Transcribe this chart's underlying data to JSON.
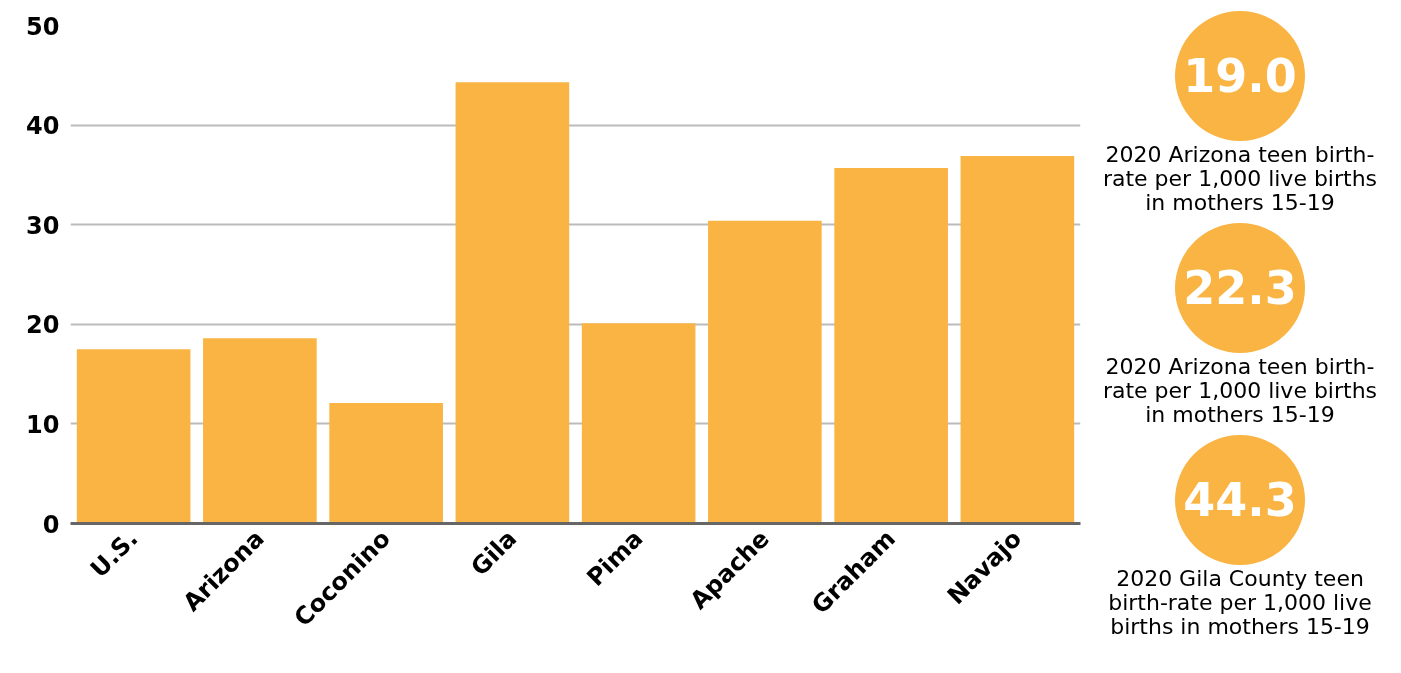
{
  "chart_data": {
    "type": "bar",
    "categories": [
      "U.S.",
      "Arizona",
      "Coconino",
      "Gila",
      "Pima",
      "Apache",
      "Graham",
      "Navajo"
    ],
    "values": [
      17.5,
      18.6,
      12.1,
      44.3,
      20.1,
      30.4,
      35.7,
      36.9
    ],
    "color": "#f9b444",
    "ylim": [
      0,
      50
    ],
    "yticks": [
      0,
      10,
      20,
      30,
      40,
      50
    ],
    "grid": "y",
    "annotations": [
      "19.0",
      "2020 Arizona teen birth-rate per 1,000 live births in mothers 15-19",
      "22.3",
      "2020 Arizona teen birth-rate per 1,000 live births in mothers 15-19",
      "44.3",
      "2020 Gila County teen birth-rate per 1,000 live births in mothers 15-19"
    ]
  }
}
